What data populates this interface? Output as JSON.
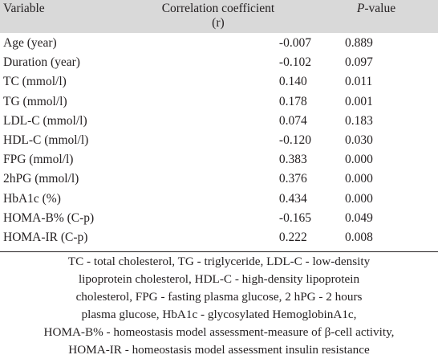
{
  "table": {
    "headers": {
      "variable": "Variable",
      "correlation_line1": "Correlation coefficient",
      "correlation_line2": "(r)",
      "pvalue_letter": "P",
      "pvalue_suffix": "-value"
    },
    "rows": [
      {
        "variable": "Age (year)",
        "r": "-0.007",
        "p": "0.889"
      },
      {
        "variable": "Duration (year)",
        "r": "-0.102",
        "p": "0.097"
      },
      {
        "variable": "TC (mmol/l)",
        "r": "0.140",
        "p": "0.011"
      },
      {
        "variable": "TG (mmol/l)",
        "r": "0.178",
        "p": "0.001"
      },
      {
        "variable": "LDL-C (mmol/l)",
        "r": "0.074",
        "p": "0.183"
      },
      {
        "variable": "HDL-C (mmol/l)",
        "r": "-0.120",
        "p": "0.030"
      },
      {
        "variable": "FPG (mmol/l)",
        "r": "0.383",
        "p": "0.000"
      },
      {
        "variable": "2hPG (mmol/l)",
        "r": "0.376",
        "p": "0.000"
      },
      {
        "variable": "HbA1c (%)",
        "r": "0.434",
        "p": "0.000"
      },
      {
        "variable": "HOMA-B% (C-p)",
        "r": "-0.165",
        "p": "0.049"
      },
      {
        "variable": "HOMA-IR (C-p)",
        "r": "0.222",
        "p": "0.008"
      }
    ]
  },
  "footnote": {
    "line1": "TC - total cholesterol, TG - triglyceride, LDL-C - low-density",
    "line2": "lipoprotein cholesterol, HDL-C - high-density lipoprotein",
    "line3": "cholesterol, FPG - fasting plasma glucose, 2 hPG - 2 hours",
    "line4": "plasma glucose, HbA1c - glycosylated HemoglobinA1c,",
    "line5": "HOMA-B% - homeostasis model assessment-measure of β-cell activity,",
    "line6": "HOMA-IR - homeostasis model assessment insulin resistance"
  }
}
